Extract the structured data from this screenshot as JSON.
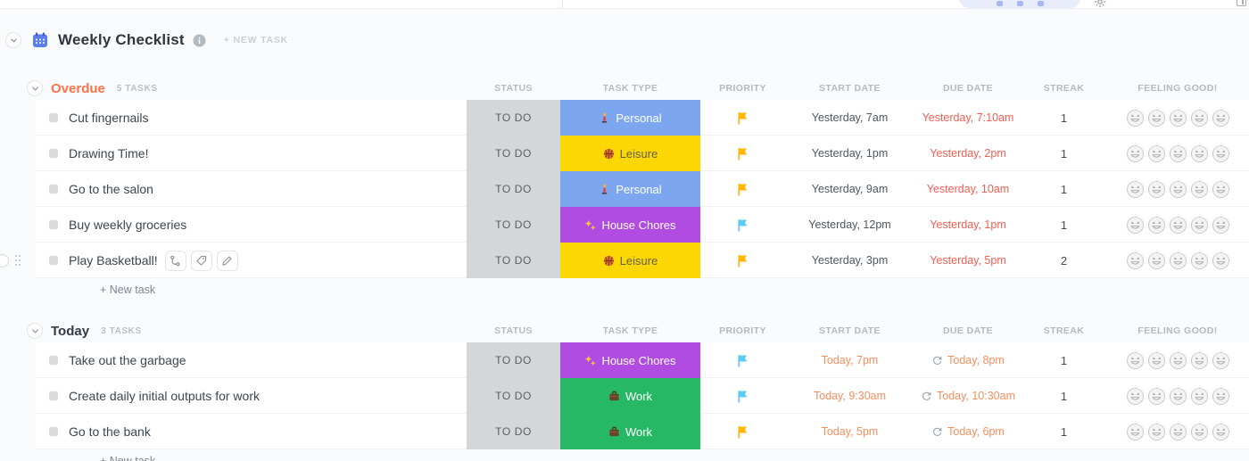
{
  "topbar": {
    "elements": [
      "toolbar-pill",
      "settings-icon",
      "panel-toggle-icon"
    ]
  },
  "list": {
    "title": "Weekly Checklist",
    "new_task_label": "+ NEW TASK"
  },
  "columns": [
    "STATUS",
    "TASK TYPE",
    "PRIORITY",
    "START DATE",
    "DUE DATE",
    "STREAK",
    "FEELING GOOD!"
  ],
  "add_task_label": "+ New task",
  "status_styles": {
    "todo": {
      "label": "TO DO",
      "bg": "#d5d6d7",
      "fg": "#575f69"
    }
  },
  "task_types": {
    "personal": {
      "label": "Personal",
      "emoji": "🕴",
      "icon": "person-icon",
      "bg": "#7ca6f0",
      "fg": "#ffffff"
    },
    "leisure": {
      "label": "Leisure",
      "emoji": "🏀",
      "icon": "basketball-icon",
      "bg": "#fdd703",
      "fg": "#655f4a"
    },
    "house_chores": {
      "label": "House Chores",
      "emoji": "✨",
      "icon": "sparkles-icon",
      "bg": "#b14ce2",
      "fg": "#ffffff"
    },
    "work": {
      "label": "Work",
      "emoji": "💼",
      "icon": "briefcase-icon",
      "bg": "#26b864",
      "fg": "#ffffff"
    }
  },
  "priority_colors": {
    "yellow": "#ffb902",
    "blue": "#58ccf5"
  },
  "date_colors": {
    "overdue": "#f75c52",
    "today": "#fa8d5c",
    "neutral": "#4e565f"
  },
  "feeling": {
    "max": 5
  },
  "groups": [
    {
      "name": "Overdue",
      "color": "#fd7149",
      "count_label": "5 TASKS",
      "tasks": [
        {
          "name": "Cut fingernails",
          "status": "TO DO",
          "type": "personal",
          "priority": "yellow",
          "start": "Yesterday, 7am",
          "start_kind": "neutral",
          "due": "Yesterday, 7:10am",
          "due_kind": "overdue",
          "recurring": false,
          "streak": "1",
          "hovered": false
        },
        {
          "name": "Drawing Time!",
          "status": "TO DO",
          "type": "leisure",
          "priority": "yellow",
          "start": "Yesterday, 1pm",
          "start_kind": "neutral",
          "due": "Yesterday, 2pm",
          "due_kind": "overdue",
          "recurring": false,
          "streak": "1",
          "hovered": false
        },
        {
          "name": "Go to the salon",
          "status": "TO DO",
          "type": "personal",
          "priority": "yellow",
          "start": "Yesterday, 9am",
          "start_kind": "neutral",
          "due": "Yesterday, 10am",
          "due_kind": "overdue",
          "recurring": false,
          "streak": "1",
          "hovered": false
        },
        {
          "name": "Buy weekly groceries",
          "status": "TO DO",
          "type": "house_chores",
          "priority": "blue",
          "start": "Yesterday, 12pm",
          "start_kind": "neutral",
          "due": "Yesterday, 1pm",
          "due_kind": "overdue",
          "recurring": false,
          "streak": "1",
          "hovered": false
        },
        {
          "name": "Play Basketball!",
          "status": "TO DO",
          "type": "leisure",
          "priority": "yellow",
          "start": "Yesterday, 3pm",
          "start_kind": "neutral",
          "due": "Yesterday, 5pm",
          "due_kind": "overdue",
          "recurring": false,
          "streak": "2",
          "hovered": true
        }
      ]
    },
    {
      "name": "Today",
      "color": "#323a45",
      "count_label": "3 TASKS",
      "tasks": [
        {
          "name": "Take out the garbage",
          "status": "TO DO",
          "type": "house_chores",
          "priority": "blue",
          "start": "Today, 7pm",
          "start_kind": "today",
          "due": "Today, 8pm",
          "due_kind": "today",
          "recurring": true,
          "streak": "1",
          "hovered": false
        },
        {
          "name": "Create daily initial outputs for work",
          "status": "TO DO",
          "type": "work",
          "priority": "blue",
          "start": "Today, 9:30am",
          "start_kind": "today",
          "due": "Today, 10:30am",
          "due_kind": "today",
          "recurring": true,
          "streak": "1",
          "hovered": false
        },
        {
          "name": "Go to the bank",
          "status": "TO DO",
          "type": "work",
          "priority": "yellow",
          "start": "Today, 5pm",
          "start_kind": "today",
          "due": "Today, 6pm",
          "due_kind": "today",
          "recurring": true,
          "streak": "1",
          "hovered": false
        }
      ]
    }
  ]
}
